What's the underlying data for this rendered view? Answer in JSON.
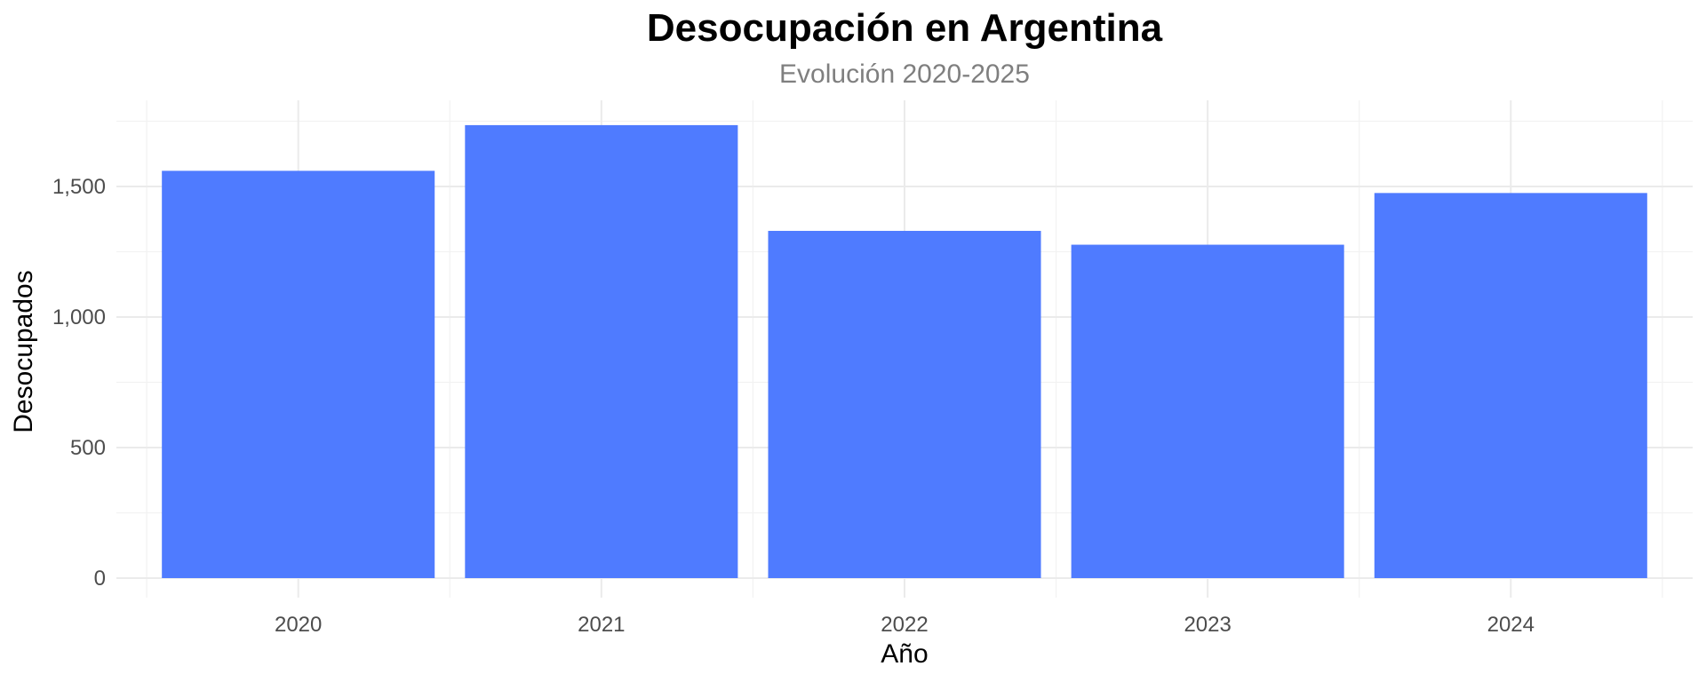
{
  "chart_data": {
    "type": "bar",
    "title": "Desocupación en Argentina",
    "subtitle": "Evolución 2020-2025",
    "xlabel": "Año",
    "ylabel": "Desocupados",
    "categories": [
      "2020",
      "2021",
      "2022",
      "2023",
      "2024"
    ],
    "values": [
      1560,
      1735,
      1330,
      1277,
      1475
    ],
    "ylim": [
      0,
      1750
    ],
    "yticks": [
      0,
      500,
      1000,
      1500
    ],
    "ytick_labels": [
      "0",
      "500",
      "1,000",
      "1,500"
    ],
    "grid": true,
    "bar_color": "#4f7bff",
    "legend": "none"
  }
}
